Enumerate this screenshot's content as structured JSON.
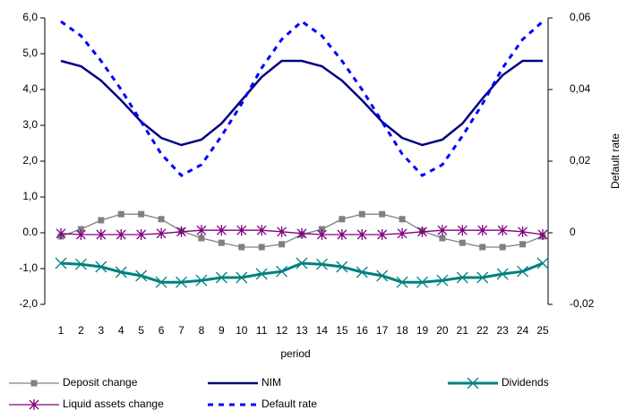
{
  "chart_data": {
    "type": "line",
    "x_label": "period",
    "y2_label": "Default rate",
    "categories": [
      "1",
      "2",
      "3",
      "4",
      "5",
      "6",
      "7",
      "8",
      "9",
      "10",
      "11",
      "12",
      "13",
      "14",
      "15",
      "16",
      "17",
      "18",
      "19",
      "20",
      "21",
      "22",
      "23",
      "24",
      "25"
    ],
    "ylim": [
      -2,
      6
    ],
    "yticks": [
      {
        "value": -2,
        "label": "-2,0"
      },
      {
        "value": -1,
        "label": "-1,0"
      },
      {
        "value": 0,
        "label": "0.0"
      },
      {
        "value": 1,
        "label": "1,0"
      },
      {
        "value": 2,
        "label": "2,0"
      },
      {
        "value": 3,
        "label": "3,0"
      },
      {
        "value": 4,
        "label": "4,0"
      },
      {
        "value": 5,
        "label": "5,0"
      },
      {
        "value": 6,
        "label": "6,0"
      }
    ],
    "y2lim": [
      -0.02,
      0.06
    ],
    "y2ticks": [
      {
        "value": -0.02,
        "label": "-0,02"
      },
      0,
      {
        "value": 0.02,
        "label": "0,02"
      },
      {
        "value": 0.04,
        "label": "0,04"
      },
      {
        "value": 0.06,
        "label": "0,06"
      }
    ],
    "series": [
      {
        "name": "Deposit change",
        "color": "#808080",
        "marker": "square",
        "dash": false,
        "values": [
          -0.1,
          0.1,
          0.35,
          0.52,
          0.52,
          0.38,
          0.05,
          -0.15,
          -0.28,
          -0.4,
          -0.4,
          -0.32,
          -0.05,
          0.1,
          0.38,
          0.52,
          0.52,
          0.38,
          0.05,
          -0.15,
          -0.28,
          -0.4,
          -0.4,
          -0.32,
          -0.1
        ]
      },
      {
        "name": "NIM",
        "color": "#000080",
        "marker": "none",
        "dash": false,
        "values": [
          4.8,
          4.65,
          4.25,
          3.7,
          3.1,
          2.65,
          2.45,
          2.6,
          3.05,
          3.7,
          4.35,
          4.8,
          4.8,
          4.65,
          4.25,
          3.7,
          3.1,
          2.65,
          2.45,
          2.6,
          3.05,
          3.75,
          4.4,
          4.8,
          4.8
        ]
      },
      {
        "name": "Dividends",
        "color": "#008080",
        "marker": "x",
        "dash": false,
        "values": [
          -0.85,
          -0.88,
          -0.95,
          -1.1,
          -1.2,
          -1.38,
          -1.38,
          -1.33,
          -1.25,
          -1.25,
          -1.15,
          -1.08,
          -0.85,
          -0.88,
          -0.95,
          -1.1,
          -1.2,
          -1.38,
          -1.38,
          -1.33,
          -1.25,
          -1.25,
          -1.15,
          -1.08,
          -0.85
        ]
      },
      {
        "name": "Liquid assets change",
        "color": "#800080",
        "marker": "star",
        "dash": false,
        "values": [
          -0.02,
          -0.05,
          -0.05,
          -0.05,
          -0.05,
          -0.02,
          0.03,
          0.07,
          0.07,
          0.07,
          0.07,
          0.03,
          -0.02,
          -0.05,
          -0.05,
          -0.05,
          -0.05,
          -0.02,
          0.03,
          0.07,
          0.07,
          0.07,
          0.07,
          0.03,
          -0.05
        ]
      },
      {
        "name": "Default rate",
        "color": "#0000ff",
        "marker": "none",
        "dash": true,
        "axis": "y2",
        "values": [
          0.059,
          0.055,
          0.048,
          0.04,
          0.031,
          0.022,
          0.016,
          0.019,
          0.027,
          0.036,
          0.046,
          0.054,
          0.059,
          0.055,
          0.048,
          0.04,
          0.031,
          0.022,
          0.016,
          0.019,
          0.027,
          0.036,
          0.046,
          0.054,
          0.059
        ]
      }
    ]
  }
}
